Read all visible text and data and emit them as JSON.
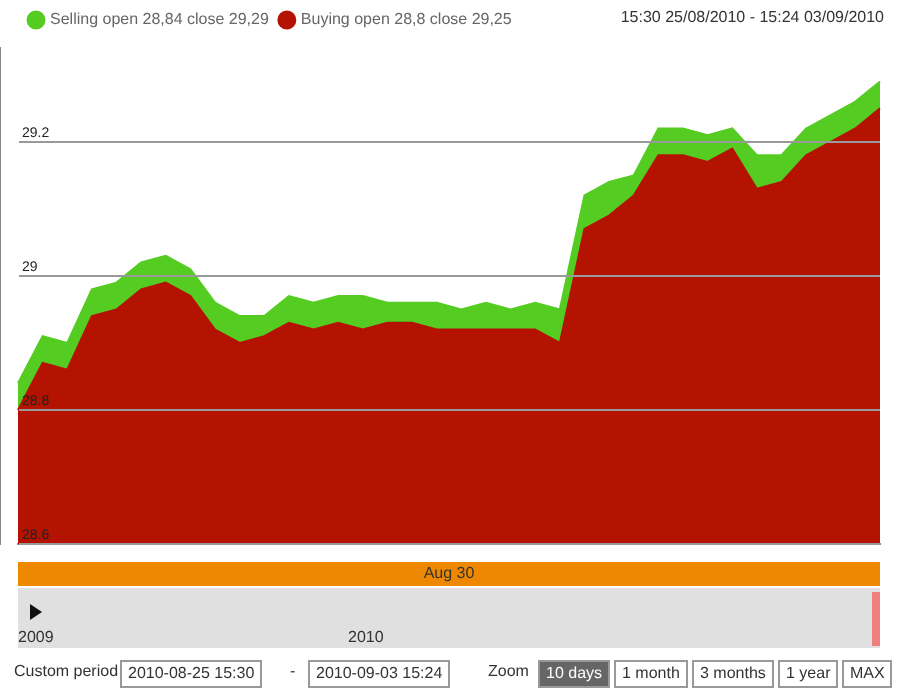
{
  "chart_data": {
    "type": "area",
    "subtitle": "15:30 25/08/2010 - 15:24 03/09/2010",
    "xlabel": "Aug 30",
    "categories": [
      null,
      null,
      null,
      null,
      null,
      null,
      null,
      null,
      null,
      null,
      null,
      null,
      null,
      null,
      null,
      null,
      null,
      null,
      null,
      null,
      null,
      null,
      null,
      null,
      null,
      null,
      null,
      null,
      null,
      null,
      null,
      null,
      null,
      null,
      null,
      null
    ],
    "series": [
      {
        "name": "Selling open 28,84 close 29,29",
        "color": "#55cc22",
        "values": [
          28.84,
          28.91,
          28.9,
          28.98,
          28.99,
          29.02,
          29.03,
          29.01,
          28.96,
          28.94,
          28.94,
          28.97,
          28.96,
          28.97,
          28.97,
          28.96,
          28.96,
          28.96,
          28.95,
          28.96,
          28.95,
          28.96,
          28.95,
          29.12,
          29.14,
          29.15,
          29.22,
          29.22,
          29.21,
          29.22,
          29.18,
          29.18,
          29.22,
          29.24,
          29.26,
          29.29
        ]
      },
      {
        "name": "Buying open 28,8 close 29,25",
        "color": "#b31300",
        "values": [
          28.8,
          28.87,
          28.86,
          28.94,
          28.95,
          28.98,
          28.99,
          28.97,
          28.92,
          28.9,
          28.91,
          28.93,
          28.92,
          28.93,
          28.92,
          28.93,
          28.93,
          28.92,
          28.92,
          28.92,
          28.92,
          28.92,
          28.9,
          29.07,
          29.09,
          29.12,
          29.18,
          29.18,
          29.17,
          29.19,
          29.13,
          29.14,
          29.18,
          29.2,
          29.22,
          29.25
        ]
      }
    ],
    "ylim": [
      28.6,
      29.34
    ],
    "yticks": [
      28.6,
      28.8,
      29.0,
      29.2
    ],
    "grid": "y",
    "legend": "top left",
    "marker": "none",
    "annotations": [
      "2009",
      "2010",
      "Custom period",
      "2010-08-25 15:30",
      "-",
      "2010-09-03 15:24",
      "Zoom",
      "10 days",
      "1 month",
      "3 months",
      "1 year",
      "MAX"
    ]
  }
}
